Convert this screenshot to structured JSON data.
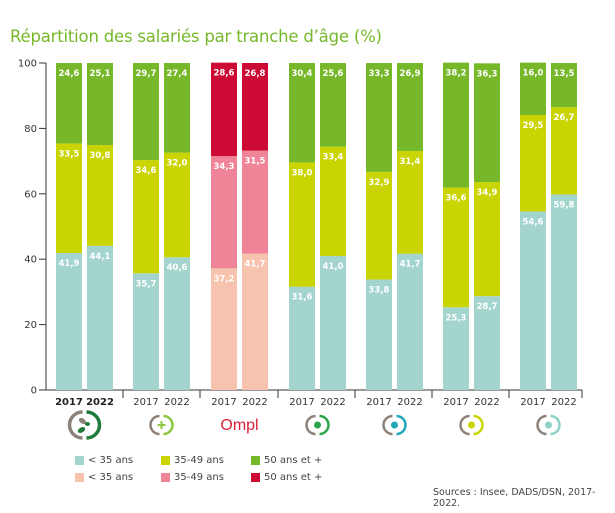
{
  "title": "Répartition des salariés par tranche d’âge (%)",
  "source": "Sources : Insee, DADS/DSN, 2017-2022.",
  "colors": {
    "under35": "#a3d5ce",
    "mid": "#c9d400",
    "over50": "#76b82a",
    "ompl_under35": "#f8c3ae",
    "ompl_mid": "#ef8499",
    "ompl_over50": "#cc0a34",
    "axis": "#333333"
  },
  "legend": {
    "row1": [
      {
        "label": "< 35 ans",
        "color": "#a3d5ce"
      },
      {
        "label": "35-49 ans",
        "color": "#c9d400"
      },
      {
        "label": "50 ans et +",
        "color": "#76b82a"
      }
    ],
    "row2": [
      {
        "label": "< 35 ans",
        "color": "#f8c3ae"
      },
      {
        "label": "35-49 ans",
        "color": "#ef8499"
      },
      {
        "label": "50 ans et +",
        "color": "#cc0a34"
      }
    ]
  },
  "groups": [
    {
      "icon": "pharmacy-capsule-icon",
      "icon_color": "#1e7b3a",
      "bold_years": true
    },
    {
      "icon": "plus-cross-icon",
      "icon_color": "#8dc63f",
      "bold_years": false
    },
    {
      "icon": "ompl-logo",
      "logo_text": "Ompl",
      "icon_color": "#d9203a",
      "bold_years": false
    },
    {
      "icon": "veterinary-icon",
      "icon_color": "#2ca44a",
      "bold_years": false
    },
    {
      "icon": "microscope-icon",
      "icon_color": "#1fa8b8",
      "bold_years": false
    },
    {
      "icon": "dental-icon",
      "icon_color": "#c9d400",
      "bold_years": false
    },
    {
      "icon": "bone-icon",
      "icon_color": "#8fd1c6",
      "bold_years": false
    }
  ],
  "chart_data": {
    "type": "bar",
    "stacked": true,
    "title": "Répartition des salariés par tranche d’âge (%)",
    "xlabel": "",
    "ylabel": "",
    "ylim": [
      0,
      100
    ],
    "yticks": [
      0,
      20,
      40,
      60,
      80,
      100
    ],
    "categories": [
      "G1-2017",
      "G1-2022",
      "G2-2017",
      "G2-2022",
      "OMPL-2017",
      "OMPL-2022",
      "G4-2017",
      "G4-2022",
      "G5-2017",
      "G5-2022",
      "G6-2017",
      "G6-2022",
      "G7-2017",
      "G7-2022"
    ],
    "year_labels": [
      "2017",
      "2022"
    ],
    "series": [
      {
        "name": "< 35 ans",
        "values": [
          41.9,
          44.1,
          35.7,
          40.6,
          37.2,
          41.7,
          31.6,
          41.0,
          33.8,
          41.7,
          25.3,
          28.7,
          54.6,
          59.8
        ],
        "labels": [
          "41,9",
          "44,1",
          "35,7",
          "40,6",
          "37,2",
          "41,7",
          "31,6",
          "41,0",
          "33,8",
          "41,7",
          "25,3",
          "28,7",
          "54,6",
          "59,8"
        ]
      },
      {
        "name": "35-49 ans",
        "values": [
          33.5,
          30.8,
          34.6,
          32.0,
          34.3,
          31.5,
          38.0,
          33.4,
          32.9,
          31.4,
          36.6,
          34.9,
          29.5,
          26.7
        ],
        "labels": [
          "33,5",
          "30,8",
          "34,6",
          "32,0",
          "34,3",
          "31,5",
          "38,0",
          "33,4",
          "32,9",
          "31,4",
          "36,6",
          "34,9",
          "29,5",
          "26,7"
        ]
      },
      {
        "name": "50 ans et +",
        "values": [
          24.6,
          25.1,
          29.7,
          27.4,
          28.6,
          26.8,
          30.4,
          25.6,
          33.3,
          26.9,
          38.2,
          36.3,
          16.0,
          13.5
        ],
        "labels": [
          "24,6",
          "25,1",
          "29,7",
          "27,4",
          "28,6",
          "26,8",
          "30,4",
          "25,6",
          "33,3",
          "26,9",
          "38,2",
          "36,3",
          "16,0",
          "13,5"
        ]
      }
    ],
    "highlight_group": "OMPL",
    "legend_position": "bottom-left",
    "grid": false
  }
}
